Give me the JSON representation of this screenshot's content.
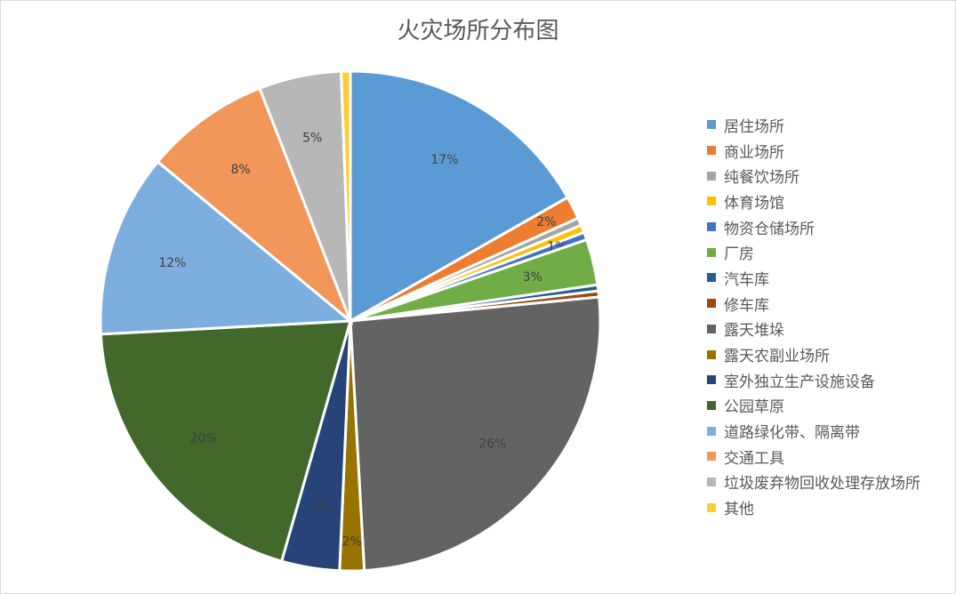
{
  "chart_data": {
    "type": "pie",
    "title": "火灾场所分布图",
    "legend_position": "right",
    "categories": [
      "居住场所",
      "商业场所",
      "纯餐饮场所",
      "体育场馆",
      "物资仓储场所",
      "厂房",
      "汽车库",
      "修车库",
      "露天堆垛",
      "露天农副业场所",
      "室外独立生产设施设备",
      "公园草原",
      "道路绿化带、隔离带",
      "交通工具",
      "垃圾废弃物回收处理存放场所",
      "其他"
    ],
    "values": [
      17,
      1.5,
      0.5,
      0.5,
      0.5,
      3,
      0.4,
      0.4,
      26,
      1.6,
      3.8,
      20,
      12,
      8.2,
      5.4,
      0.6
    ],
    "data_labels": [
      "17%",
      "2%",
      "",
      "",
      "1%",
      "3%",
      "",
      "",
      "26%",
      "2%",
      "4%",
      "20%",
      "12%",
      "8%",
      "5%",
      ""
    ],
    "colors": [
      "#5B9BD5",
      "#ED7D31",
      "#A5A5A5",
      "#FFC000",
      "#4472C4",
      "#70AD47",
      "#255E91",
      "#9E480E",
      "#636363",
      "#997300",
      "#264478",
      "#43682B",
      "#7CAFDD",
      "#F1975A",
      "#B7B7B7",
      "#FFCD33"
    ]
  },
  "title": "火灾场所分布图"
}
